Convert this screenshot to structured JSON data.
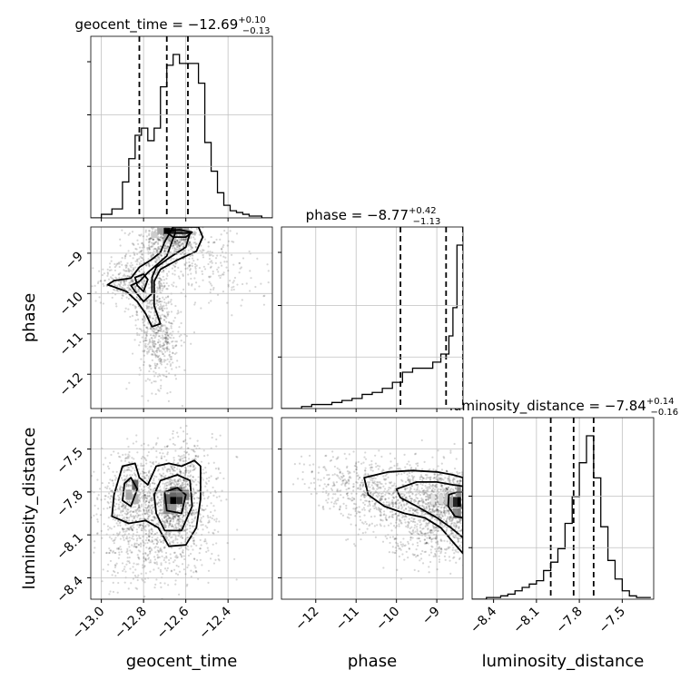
{
  "chart_data": {
    "type": "corner",
    "parameters": [
      "geocent_time",
      "phase",
      "luminosity_distance"
    ],
    "axis_labels": {
      "geocent_time": "geocent_time",
      "phase": "phase",
      "luminosity_distance": "luminosity_distance"
    },
    "ranges": {
      "geocent_time": [
        -13.05,
        -12.19
      ],
      "phase": [
        -12.85,
        -8.35
      ],
      "luminosity_distance": [
        -8.55,
        -7.28
      ]
    },
    "ticks": {
      "geocent_time": [
        -13.0,
        -12.8,
        -12.6,
        -12.4
      ],
      "phase": [
        -12,
        -11,
        -10,
        -9
      ],
      "luminosity_distance": [
        -8.4,
        -8.1,
        -7.8,
        -7.5
      ]
    },
    "tick_labels": {
      "geocent_time": [
        "−13.0",
        "−12.8",
        "−12.6",
        "−12.4"
      ],
      "phase": [
        "−12",
        "−11",
        "−10",
        "−9"
      ],
      "luminosity_distance": [
        "−8.4",
        "−8.1",
        "−7.8",
        "−7.5"
      ]
    },
    "titles": {
      "geocent_time": {
        "name": "geocent_time = −12.69",
        "plus": "+0.10",
        "minus": "−0.13"
      },
      "phase": {
        "name": "phase = −8.77",
        "plus": "+0.42",
        "minus": "−1.13"
      },
      "luminosity_distance": {
        "name": "luminosity_distance = −7.84",
        "plus": "+0.14",
        "minus": "−0.16"
      }
    },
    "quantiles": {
      "geocent_time": [
        -12.82,
        -12.69,
        -12.59
      ],
      "phase": [
        -9.9,
        -8.77,
        -8.35
      ],
      "luminosity_distance": [
        -8.0,
        -7.84,
        -7.7
      ]
    },
    "histograms": {
      "geocent_time": {
        "edges": [
          -13.05,
          -13.0,
          -12.95,
          -12.9,
          -12.87,
          -12.84,
          -12.81,
          -12.78,
          -12.75,
          -12.72,
          -12.69,
          -12.66,
          -12.63,
          -12.6,
          -12.57,
          -12.54,
          -12.51,
          -12.48,
          -12.45,
          -12.42,
          -12.39,
          -12.36,
          -12.33,
          -12.3,
          -12.27,
          -12.24,
          -12.21,
          -12.19
        ],
        "counts": [
          0.0,
          0.02,
          0.05,
          0.2,
          0.33,
          0.46,
          0.5,
          0.43,
          0.5,
          0.73,
          0.85,
          0.91,
          0.86,
          0.86,
          0.86,
          0.75,
          0.42,
          0.26,
          0.14,
          0.07,
          0.04,
          0.03,
          0.02,
          0.01,
          0.01,
          0.0,
          0.0
        ]
      },
      "phase": {
        "edges": [
          -12.85,
          -12.6,
          -12.35,
          -12.1,
          -11.85,
          -11.6,
          -11.35,
          -11.1,
          -10.85,
          -10.6,
          -10.35,
          -10.1,
          -9.85,
          -9.6,
          -9.35,
          -9.1,
          -8.9,
          -8.7,
          -8.6,
          -8.5,
          -8.35
        ],
        "counts": [
          0.0,
          0.0,
          0.01,
          0.02,
          0.02,
          0.03,
          0.04,
          0.05,
          0.07,
          0.08,
          0.1,
          0.13,
          0.18,
          0.2,
          0.2,
          0.23,
          0.27,
          0.36,
          0.5,
          0.81
        ]
      },
      "luminosity_distance": {
        "edges": [
          -8.55,
          -8.5,
          -8.45,
          -8.4,
          -8.35,
          -8.3,
          -8.25,
          -8.2,
          -8.15,
          -8.1,
          -8.05,
          -8.0,
          -7.95,
          -7.9,
          -7.85,
          -7.8,
          -7.75,
          -7.7,
          -7.65,
          -7.6,
          -7.55,
          -7.5,
          -7.45,
          -7.4,
          -7.35,
          -7.3
        ],
        "counts": [
          0.0,
          0.0,
          0.01,
          0.01,
          0.02,
          0.03,
          0.05,
          0.07,
          0.09,
          0.11,
          0.17,
          0.22,
          0.3,
          0.45,
          0.61,
          0.81,
          0.97,
          0.72,
          0.43,
          0.23,
          0.12,
          0.05,
          0.02,
          0.01,
          0.01
        ]
      }
    },
    "pairs": [
      {
        "x": "geocent_time",
        "y": "phase",
        "contour_levels": [
          [
            [
              -12.86,
              -9.62
            ],
            [
              -12.82,
              -9.35
            ],
            [
              -12.76,
              -9.15
            ],
            [
              -12.72,
              -8.98
            ],
            [
              -12.7,
              -8.72
            ],
            [
              -12.66,
              -8.35
            ],
            [
              -12.54,
              -8.35
            ],
            [
              -12.52,
              -8.6
            ],
            [
              -12.55,
              -8.95
            ],
            [
              -12.64,
              -9.17
            ],
            [
              -12.72,
              -9.4
            ],
            [
              -12.75,
              -9.7
            ],
            [
              -12.75,
              -10.3
            ],
            [
              -12.72,
              -10.75
            ],
            [
              -12.76,
              -10.82
            ],
            [
              -12.79,
              -10.5
            ],
            [
              -12.83,
              -10.2
            ],
            [
              -12.88,
              -9.95
            ],
            [
              -12.97,
              -9.78
            ],
            [
              -12.94,
              -9.68
            ]
          ],
          [
            [
              -12.82,
              -9.7
            ],
            [
              -12.78,
              -9.48
            ],
            [
              -12.74,
              -9.3
            ],
            [
              -12.69,
              -9.07
            ],
            [
              -12.67,
              -8.78
            ],
            [
              -12.65,
              -8.5
            ],
            [
              -12.58,
              -8.5
            ],
            [
              -12.6,
              -8.85
            ],
            [
              -12.68,
              -9.12
            ],
            [
              -12.74,
              -9.35
            ],
            [
              -12.76,
              -9.6
            ],
            [
              -12.76,
              -10.0
            ],
            [
              -12.8,
              -10.2
            ],
            [
              -12.84,
              -9.95
            ],
            [
              -12.86,
              -9.8
            ]
          ],
          [
            [
              -12.84,
              -9.6
            ],
            [
              -12.8,
              -9.52
            ],
            [
              -12.78,
              -9.65
            ],
            [
              -12.8,
              -9.95
            ],
            [
              -12.83,
              -9.8
            ]
          ],
          [
            [
              -12.7,
              -8.45
            ],
            [
              -12.66,
              -8.6
            ],
            [
              -12.6,
              -8.6
            ],
            [
              -12.57,
              -8.48
            ],
            [
              -12.63,
              -8.42
            ]
          ]
        ],
        "density_cells": [
          [
            -12.69,
            -8.45,
            1.0
          ],
          [
            -12.66,
            -8.45,
            0.9
          ],
          [
            -12.63,
            -8.45,
            0.6
          ],
          [
            -12.6,
            -8.45,
            0.35
          ],
          [
            -12.69,
            -8.6,
            0.35
          ],
          [
            -12.66,
            -8.6,
            0.3
          ],
          [
            -12.75,
            -8.55,
            0.2
          ],
          [
            -12.72,
            -8.45,
            0.35
          ]
        ]
      },
      {
        "x": "geocent_time",
        "y": "luminosity_distance",
        "contour_levels": [
          [
            [
              -12.9,
              -7.62
            ],
            [
              -12.84,
              -7.6
            ],
            [
              -12.82,
              -7.7
            ],
            [
              -12.78,
              -7.75
            ],
            [
              -12.74,
              -7.62
            ],
            [
              -12.68,
              -7.6
            ],
            [
              -12.62,
              -7.62
            ],
            [
              -12.56,
              -7.58
            ],
            [
              -12.53,
              -7.62
            ],
            [
              -12.53,
              -7.85
            ],
            [
              -12.55,
              -8.05
            ],
            [
              -12.6,
              -8.17
            ],
            [
              -12.68,
              -8.18
            ],
            [
              -12.73,
              -8.05
            ],
            [
              -12.79,
              -8.0
            ],
            [
              -12.87,
              -8.02
            ],
            [
              -12.95,
              -7.97
            ],
            [
              -12.94,
              -7.82
            ]
          ],
          [
            [
              -12.86,
              -7.7
            ],
            [
              -12.83,
              -7.78
            ],
            [
              -12.86,
              -7.9
            ],
            [
              -12.9,
              -7.86
            ],
            [
              -12.89,
              -7.74
            ]
          ],
          [
            [
              -12.72,
              -7.72
            ],
            [
              -12.64,
              -7.68
            ],
            [
              -12.58,
              -7.72
            ],
            [
              -12.57,
              -7.9
            ],
            [
              -12.62,
              -8.07
            ],
            [
              -12.7,
              -8.07
            ],
            [
              -12.74,
              -7.95
            ],
            [
              -12.75,
              -7.82
            ]
          ],
          [
            [
              -12.7,
              -7.8
            ],
            [
              -12.64,
              -7.77
            ],
            [
              -12.6,
              -7.82
            ],
            [
              -12.62,
              -7.95
            ],
            [
              -12.69,
              -7.93
            ]
          ]
        ],
        "density_cells": [
          [
            -12.66,
            -7.85,
            1.0
          ],
          [
            -12.63,
            -7.85,
            0.8
          ],
          [
            -12.69,
            -7.85,
            0.6
          ],
          [
            -12.6,
            -7.82,
            0.5
          ],
          [
            -12.66,
            -7.8,
            0.6
          ],
          [
            -12.63,
            -7.8,
            0.55
          ],
          [
            -12.69,
            -7.92,
            0.45
          ],
          [
            -12.66,
            -7.92,
            0.4
          ],
          [
            -12.84,
            -7.75,
            0.6
          ],
          [
            -12.87,
            -7.82,
            0.35
          ],
          [
            -12.84,
            -7.85,
            0.3
          ]
        ]
      },
      {
        "x": "phase",
        "y": "luminosity_distance",
        "contour_levels": [
          [
            [
              -10.8,
              -7.7
            ],
            [
              -10.2,
              -7.66
            ],
            [
              -9.6,
              -7.65
            ],
            [
              -9.0,
              -7.66
            ],
            [
              -8.6,
              -7.68
            ],
            [
              -8.35,
              -7.7
            ],
            [
              -8.35,
              -8.23
            ],
            [
              -8.6,
              -8.15
            ],
            [
              -8.9,
              -8.05
            ],
            [
              -9.3,
              -7.98
            ],
            [
              -9.8,
              -7.95
            ],
            [
              -10.3,
              -7.9
            ],
            [
              -10.7,
              -7.82
            ]
          ],
          [
            [
              -10.0,
              -7.78
            ],
            [
              -9.5,
              -7.73
            ],
            [
              -9.0,
              -7.73
            ],
            [
              -8.6,
              -7.75
            ],
            [
              -8.35,
              -7.76
            ],
            [
              -8.35,
              -8.12
            ],
            [
              -8.65,
              -8.05
            ],
            [
              -9.0,
              -7.98
            ],
            [
              -9.5,
              -7.9
            ],
            [
              -9.9,
              -7.84
            ]
          ],
          [
            [
              -8.7,
              -7.82
            ],
            [
              -8.5,
              -7.8
            ],
            [
              -8.35,
              -7.8
            ],
            [
              -8.35,
              -7.98
            ],
            [
              -8.55,
              -7.97
            ],
            [
              -8.72,
              -7.9
            ]
          ]
        ],
        "density_cells": [
          [
            -8.45,
            -7.87,
            1.0
          ],
          [
            -8.55,
            -7.87,
            0.85
          ],
          [
            -8.45,
            -7.95,
            0.5
          ],
          [
            -8.55,
            -7.95,
            0.45
          ],
          [
            -8.65,
            -7.87,
            0.4
          ],
          [
            -8.45,
            -7.8,
            0.45
          ],
          [
            -8.75,
            -7.85,
            0.25
          ],
          [
            -8.9,
            -7.85,
            0.15
          ],
          [
            -9.1,
            -7.85,
            0.1
          ]
        ]
      }
    ],
    "scatter_clouds": [
      {
        "x": "geocent_time",
        "y": "phase",
        "centers": [
          [
            -12.66,
            -8.55,
            0.06,
            0.25,
            420
          ],
          [
            -12.72,
            -9.0,
            0.08,
            0.3,
            300
          ],
          [
            -12.88,
            -9.7,
            0.07,
            0.25,
            260
          ],
          [
            -12.75,
            -10.3,
            0.05,
            0.5,
            260
          ],
          [
            -12.72,
            -11.2,
            0.05,
            0.55,
            360
          ],
          [
            -12.55,
            -9.0,
            0.1,
            0.5,
            180
          ],
          [
            -12.4,
            -9.6,
            0.12,
            0.4,
            60
          ]
        ]
      },
      {
        "x": "geocent_time",
        "y": "luminosity_distance",
        "centers": [
          [
            -12.65,
            -7.88,
            0.08,
            0.15,
            900
          ],
          [
            -12.86,
            -7.82,
            0.07,
            0.14,
            500
          ],
          [
            -12.75,
            -8.1,
            0.15,
            0.15,
            400
          ],
          [
            -12.6,
            -7.6,
            0.08,
            0.12,
            150
          ],
          [
            -12.8,
            -8.3,
            0.12,
            0.1,
            150
          ]
        ]
      },
      {
        "x": "phase",
        "y": "luminosity_distance",
        "centers": [
          [
            -8.6,
            -7.88,
            0.4,
            0.12,
            700
          ],
          [
            -9.5,
            -7.85,
            0.7,
            0.14,
            700
          ],
          [
            -10.6,
            -7.8,
            0.6,
            0.12,
            300
          ],
          [
            -11.5,
            -7.72,
            0.5,
            0.1,
            120
          ],
          [
            -9.0,
            -8.15,
            0.6,
            0.1,
            250
          ]
        ]
      }
    ]
  }
}
